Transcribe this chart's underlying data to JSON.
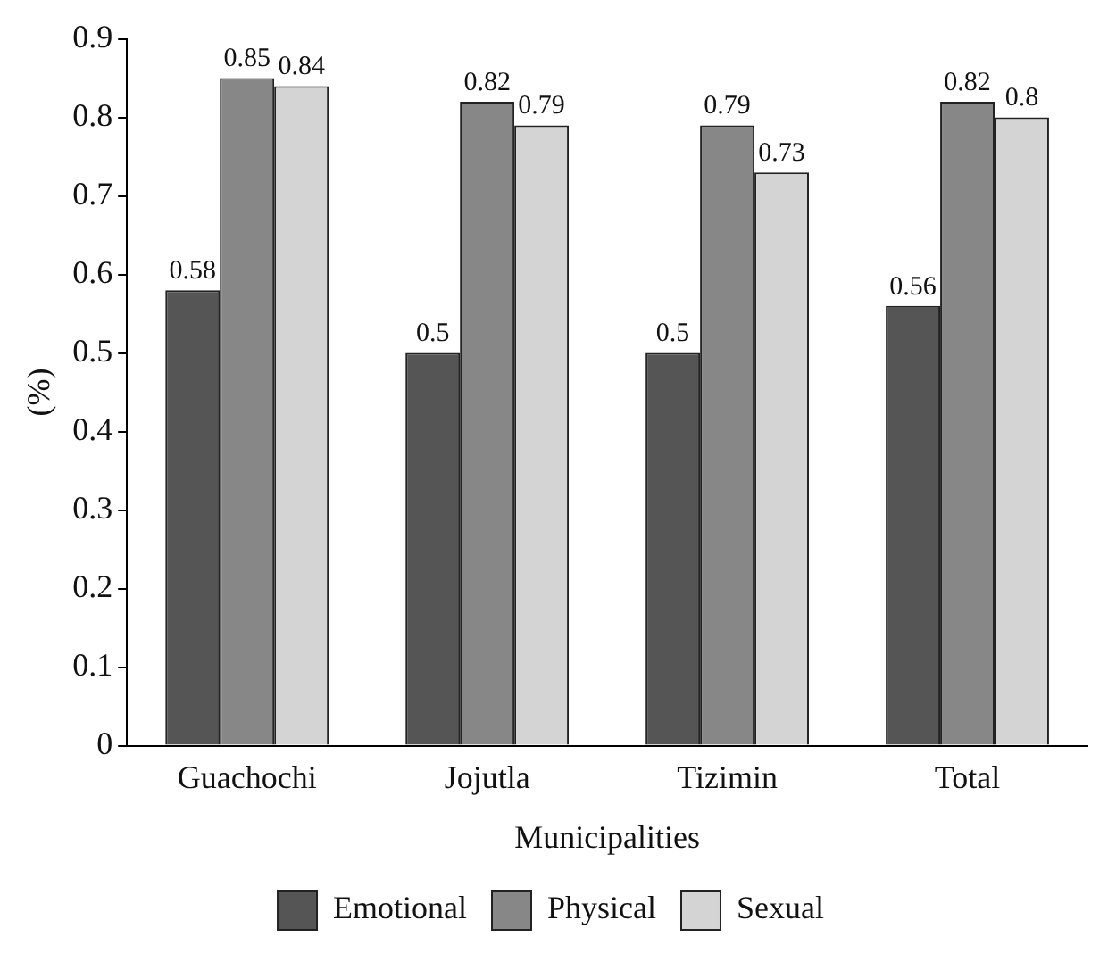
{
  "chart_data": {
    "type": "bar",
    "xlabel": "Municipalities",
    "ylabel": "(%)",
    "categories": [
      "Guachochi",
      "Jojutla",
      "Tizimin",
      "Total"
    ],
    "series": [
      {
        "name": "Emotional",
        "color": "#555555",
        "values": [
          0.58,
          0.5,
          0.5,
          0.56
        ]
      },
      {
        "name": "Physical",
        "color": "#878787",
        "values": [
          0.85,
          0.82,
          0.79,
          0.82
        ]
      },
      {
        "name": "Sexual",
        "color": "#d4d4d4",
        "values": [
          0.84,
          0.79,
          0.73,
          0.8
        ]
      }
    ],
    "ylim": [
      0,
      0.9
    ],
    "yticks": [
      0,
      0.1,
      0.2,
      0.3,
      0.4,
      0.5,
      0.6,
      0.7,
      0.8,
      0.9
    ],
    "grid": false,
    "legend": "bottom",
    "data_labels": true
  }
}
